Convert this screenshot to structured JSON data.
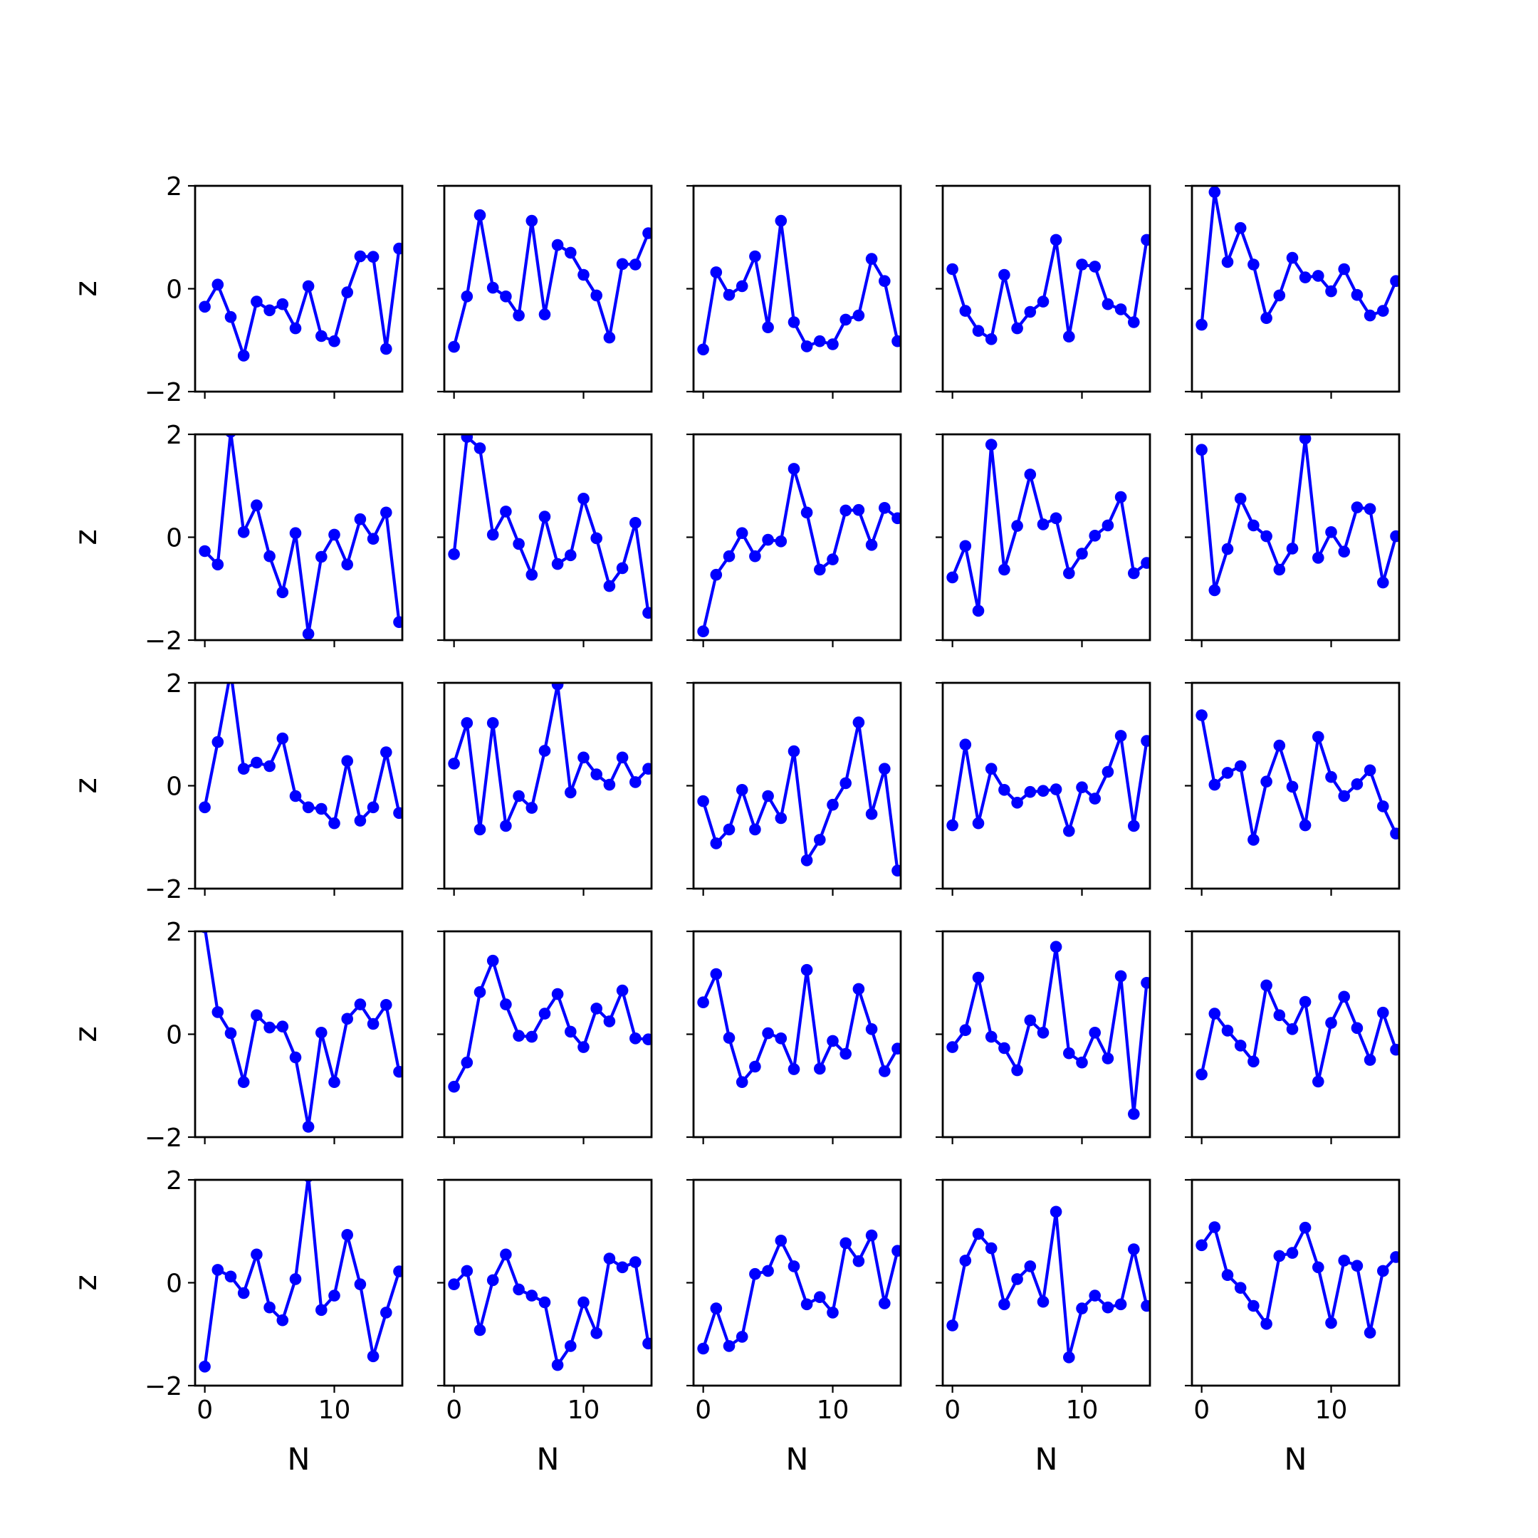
{
  "chart_data": {
    "type": "line",
    "layout": "grid",
    "rows": 5,
    "cols": 5,
    "xlabel": "N",
    "ylabel": "z",
    "xlim": [
      -0.75,
      15.25
    ],
    "ylim": [
      -2,
      2
    ],
    "xticks": [
      0,
      10
    ],
    "xtick_labels": [
      "0",
      "10"
    ],
    "yticks": [
      -2,
      0,
      2
    ],
    "ytick_labels": [
      "−2",
      "0",
      "2"
    ],
    "line_color": "#0000ff",
    "marker": "circle",
    "grid": false,
    "x": [
      0,
      1,
      2,
      3,
      4,
      5,
      6,
      7,
      8,
      9,
      10,
      11,
      12,
      13,
      14,
      15
    ],
    "panels": [
      {
        "y": [
          -0.35,
          0.08,
          -0.55,
          -1.3,
          -0.25,
          -0.42,
          -0.3,
          -0.77,
          0.05,
          -0.92,
          -1.02,
          -0.07,
          0.63,
          0.62,
          -1.17,
          0.78
        ]
      },
      {
        "y": [
          -1.13,
          -0.15,
          1.43,
          0.02,
          -0.15,
          -0.52,
          1.32,
          -0.5,
          0.85,
          0.7,
          0.27,
          -0.13,
          -0.95,
          0.48,
          0.47,
          1.08
        ]
      },
      {
        "y": [
          -1.18,
          0.32,
          -0.12,
          0.05,
          0.63,
          -0.75,
          1.32,
          -0.65,
          -1.12,
          -1.02,
          -1.08,
          -0.6,
          -0.52,
          0.58,
          0.15,
          -1.02
        ]
      },
      {
        "y": [
          0.38,
          -0.43,
          -0.82,
          -0.98,
          0.27,
          -0.77,
          -0.45,
          -0.25,
          0.95,
          -0.93,
          0.47,
          0.43,
          -0.3,
          -0.4,
          -0.65,
          0.95
        ]
      },
      {
        "y": [
          -0.7,
          1.88,
          0.52,
          1.18,
          0.47,
          -0.57,
          -0.13,
          0.6,
          0.22,
          0.25,
          -0.05,
          0.38,
          -0.12,
          -0.52,
          -0.43,
          0.15
        ]
      },
      {
        "y": [
          -0.27,
          -0.53,
          2.05,
          0.1,
          0.62,
          -0.37,
          -1.07,
          0.08,
          -1.88,
          -0.38,
          0.05,
          -0.53,
          0.35,
          -0.03,
          0.48,
          -1.65
        ]
      },
      {
        "y": [
          -0.33,
          1.95,
          1.73,
          0.05,
          0.5,
          -0.13,
          -0.73,
          0.4,
          -0.52,
          -0.35,
          0.75,
          -0.02,
          -0.95,
          -0.6,
          0.28,
          -1.47
        ]
      },
      {
        "y": [
          -1.83,
          -0.73,
          -0.37,
          0.08,
          -0.37,
          -0.05,
          -0.08,
          1.33,
          0.48,
          -0.63,
          -0.43,
          0.52,
          0.53,
          -0.15,
          0.57,
          0.37
        ]
      },
      {
        "y": [
          -0.78,
          -0.17,
          -1.43,
          1.8,
          -0.63,
          0.22,
          1.22,
          0.25,
          0.37,
          -0.7,
          -0.32,
          0.03,
          0.23,
          0.78,
          -0.7,
          -0.5
        ]
      },
      {
        "y": [
          1.7,
          -1.03,
          -0.23,
          0.75,
          0.23,
          0.02,
          -0.63,
          -0.22,
          1.92,
          -0.4,
          0.1,
          -0.28,
          0.58,
          0.55,
          -0.88,
          0.02
        ]
      },
      {
        "y": [
          -0.42,
          0.85,
          2.22,
          0.33,
          0.45,
          0.38,
          0.92,
          -0.2,
          -0.42,
          -0.45,
          -0.73,
          0.48,
          -0.68,
          -0.42,
          0.65,
          -0.53
        ]
      },
      {
        "y": [
          0.43,
          1.22,
          -0.85,
          1.22,
          -0.78,
          -0.2,
          -0.43,
          0.68,
          1.97,
          -0.13,
          0.55,
          0.22,
          0.02,
          0.55,
          0.07,
          0.33
        ]
      },
      {
        "y": [
          -0.3,
          -1.12,
          -0.85,
          -0.08,
          -0.85,
          -0.2,
          -0.63,
          0.67,
          -1.45,
          -1.05,
          -0.37,
          0.05,
          1.23,
          -0.55,
          0.33,
          -1.65
        ]
      },
      {
        "y": [
          -0.77,
          0.8,
          -0.73,
          0.33,
          -0.08,
          -0.33,
          -0.12,
          -0.1,
          -0.07,
          -0.88,
          -0.03,
          -0.25,
          0.27,
          0.97,
          -0.78,
          0.87
        ]
      },
      {
        "y": [
          1.37,
          0.02,
          0.25,
          0.38,
          -1.05,
          0.08,
          0.78,
          -0.02,
          -0.77,
          0.95,
          0.17,
          -0.2,
          0.03,
          0.3,
          -0.4,
          -0.93
        ]
      },
      {
        "y": [
          2.08,
          0.43,
          0.02,
          -0.93,
          0.37,
          0.13,
          0.15,
          -0.45,
          -1.8,
          0.03,
          -0.93,
          0.3,
          0.58,
          0.2,
          0.57,
          -0.73
        ]
      },
      {
        "y": [
          -1.02,
          -0.55,
          0.82,
          1.43,
          0.58,
          -0.03,
          -0.05,
          0.4,
          0.78,
          0.05,
          -0.25,
          0.5,
          0.25,
          0.85,
          -0.08,
          -0.1
        ]
      },
      {
        "y": [
          0.62,
          1.17,
          -0.07,
          -0.93,
          -0.63,
          0.02,
          -0.08,
          -0.68,
          1.25,
          -0.67,
          -0.13,
          -0.38,
          0.88,
          0.1,
          -0.72,
          -0.28
        ]
      },
      {
        "y": [
          -0.25,
          0.08,
          1.1,
          -0.05,
          -0.27,
          -0.7,
          0.27,
          0.03,
          1.7,
          -0.37,
          -0.55,
          0.03,
          -0.47,
          1.13,
          -1.55,
          1.0
        ]
      },
      {
        "y": [
          -0.78,
          0.4,
          0.07,
          -0.22,
          -0.53,
          0.95,
          0.37,
          0.1,
          0.63,
          -0.92,
          0.22,
          0.73,
          0.12,
          -0.5,
          0.42,
          -0.3
        ]
      },
      {
        "y": [
          -1.63,
          0.25,
          0.12,
          -0.2,
          0.55,
          -0.48,
          -0.73,
          0.07,
          2.07,
          -0.53,
          -0.25,
          0.93,
          -0.03,
          -1.43,
          -0.58,
          0.22
        ]
      },
      {
        "y": [
          -0.03,
          0.23,
          -0.92,
          0.05,
          0.55,
          -0.13,
          -0.25,
          -0.38,
          -1.6,
          -1.23,
          -0.38,
          -0.98,
          0.47,
          0.3,
          0.4,
          -1.18
        ]
      },
      {
        "y": [
          -1.28,
          -0.5,
          -1.23,
          -1.05,
          0.17,
          0.23,
          0.82,
          0.32,
          -0.42,
          -0.28,
          -0.58,
          0.77,
          0.42,
          0.92,
          -0.4,
          0.62
        ]
      },
      {
        "y": [
          -0.83,
          0.43,
          0.95,
          0.67,
          -0.42,
          0.07,
          0.32,
          -0.37,
          1.38,
          -1.45,
          -0.5,
          -0.25,
          -0.48,
          -0.42,
          0.65,
          -0.45
        ]
      },
      {
        "y": [
          0.73,
          1.08,
          0.15,
          -0.1,
          -0.45,
          -0.8,
          0.52,
          0.58,
          1.07,
          0.3,
          -0.78,
          0.43,
          0.33,
          -0.97,
          0.23,
          0.5
        ]
      }
    ]
  }
}
